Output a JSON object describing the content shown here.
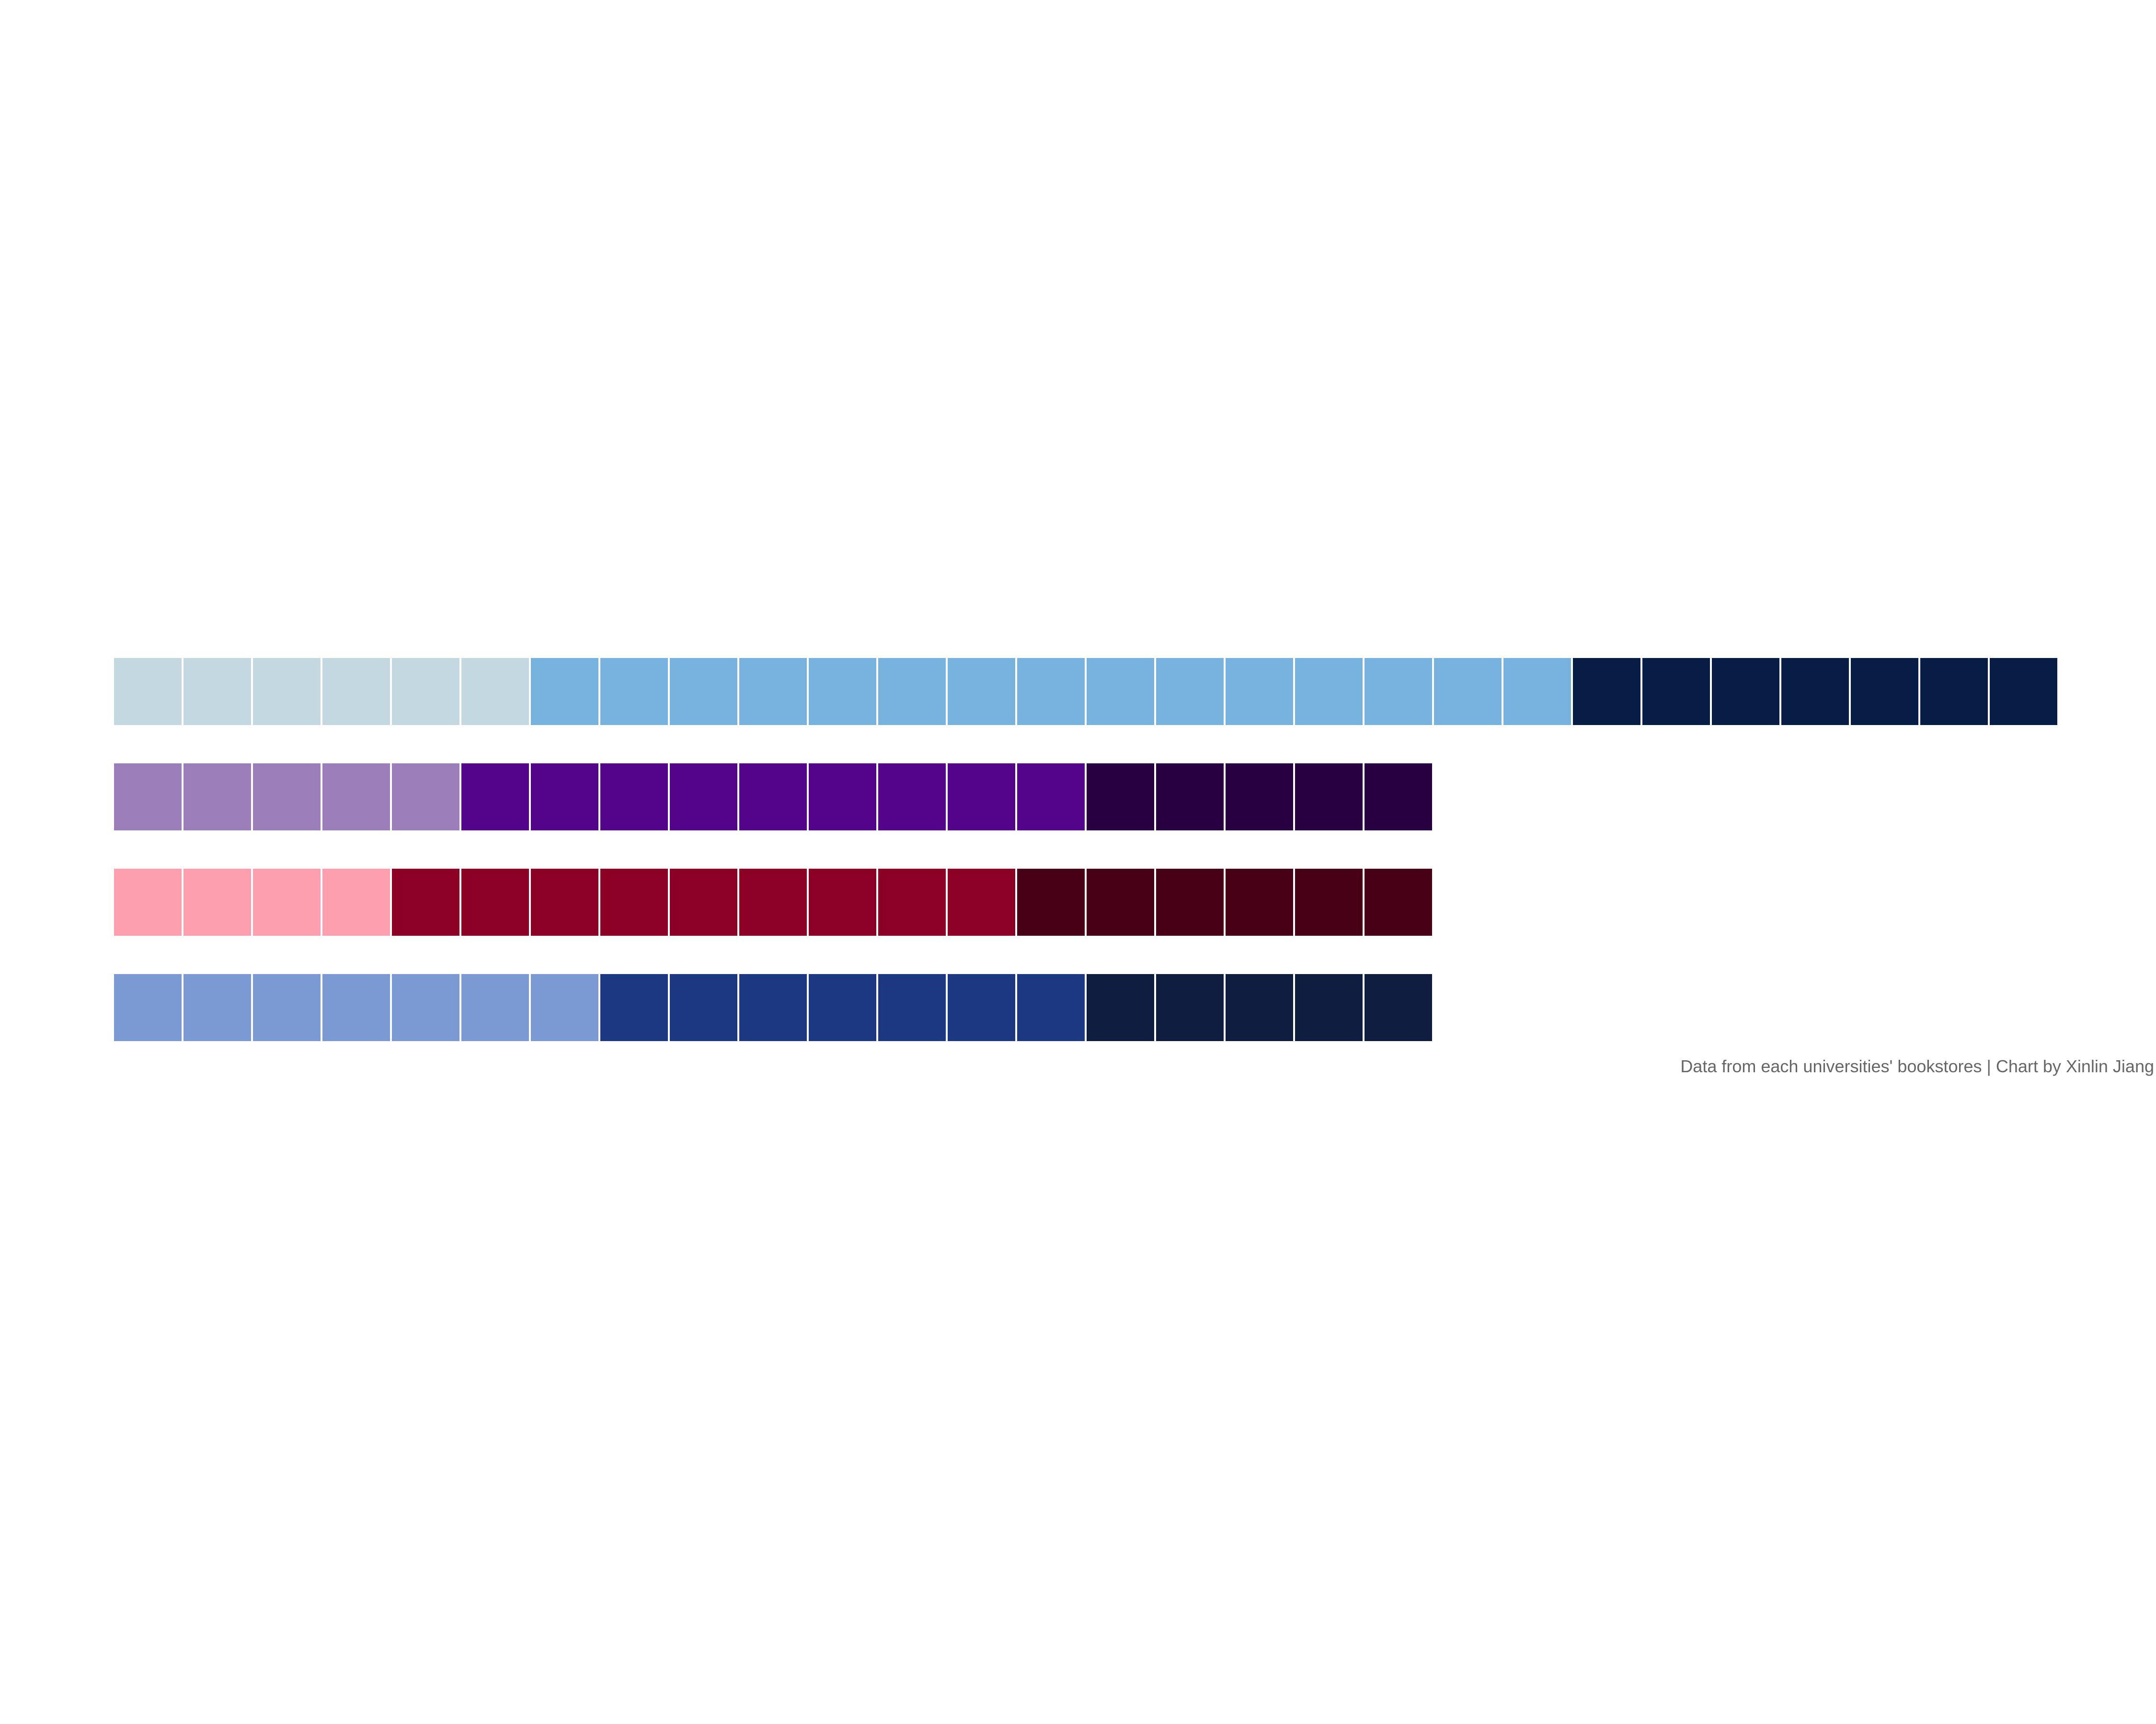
{
  "chart_data": {
    "type": "waffle",
    "rows": [
      {
        "segments": [
          {
            "count": 6,
            "color": "#c4d8e1"
          },
          {
            "count": 15,
            "color": "#78b2df"
          },
          {
            "count": 7,
            "color": "#071d45"
          }
        ]
      },
      {
        "segments": [
          {
            "count": 5,
            "color": "#9b7eba"
          },
          {
            "count": 9,
            "color": "#54048a"
          },
          {
            "count": 5,
            "color": "#280041"
          }
        ]
      },
      {
        "segments": [
          {
            "count": 4,
            "color": "#fe9fb0"
          },
          {
            "count": 9,
            "color": "#8c0026"
          },
          {
            "count": 6,
            "color": "#480016"
          }
        ]
      },
      {
        "segments": [
          {
            "count": 7,
            "color": "#7b99d2"
          },
          {
            "count": 7,
            "color": "#1d3882"
          },
          {
            "count": 5,
            "color": "#0e1d40"
          }
        ]
      }
    ],
    "caption": "Data from each universities' bookstores | Chart by Xinlin Jiang"
  }
}
